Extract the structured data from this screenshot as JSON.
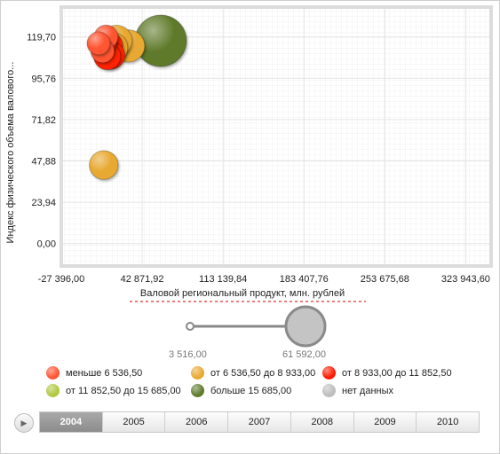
{
  "chart_data": {
    "type": "scatter",
    "xlabel": "Валовой региональный продукт, млн. рублей",
    "ylabel": "Индекс физического объема валового...",
    "x_ticks": [
      "-27 396,00",
      "42 871,92",
      "113 139,84",
      "183 407,76",
      "253 675,68",
      "323 943,60"
    ],
    "y_ticks": [
      "119,70",
      "95,76",
      "71,82",
      "47,88",
      "23,94",
      "0,00"
    ],
    "xlim": [
      -27396,
      346000
    ],
    "ylim": [
      -13,
      137
    ],
    "bubbles": [
      {
        "x": 5000,
        "y": 116.0,
        "size": 7000,
        "color": "#ff5533"
      },
      {
        "x": 8500,
        "y": 111.5,
        "size": 7200,
        "color": "#ff5533"
      },
      {
        "x": 11500,
        "y": 119.7,
        "size": 7500,
        "color": "#ff5533"
      },
      {
        "x": 14000,
        "y": 114.5,
        "size": 10200,
        "color": "#ff2200"
      },
      {
        "x": 12500,
        "y": 108.5,
        "size": 9600,
        "color": "#ff2200"
      },
      {
        "x": 17000,
        "y": 113.5,
        "size": 12300,
        "color": "#e8a930"
      },
      {
        "x": 20500,
        "y": 117.5,
        "size": 12800,
        "color": "#e8a930"
      },
      {
        "x": 31000,
        "y": 114.5,
        "size": 13800,
        "color": "#e8a930"
      },
      {
        "x": 16000,
        "y": 109.0,
        "size": 9900,
        "color": "#ff2200"
      },
      {
        "x": 10000,
        "y": 116.5,
        "size": 8200,
        "color": "#ff2200"
      },
      {
        "x": 9500,
        "y": 45.5,
        "size": 11000,
        "color": "#e8a930"
      },
      {
        "x": 59000,
        "y": 117.5,
        "size": 35000,
        "color": "#5e7a2a"
      }
    ],
    "size_legend": {
      "min": "3 516,00",
      "max": "61 592,00"
    },
    "legend_position": "bottom",
    "legend": [
      {
        "label": "меньше 6 536,50",
        "color": "#ff5533"
      },
      {
        "label": "от 6 536,50 до 8 933,00",
        "color": "#e8a930"
      },
      {
        "label": "от 8 933,00 до 11 852,50",
        "color": "#ff1a00"
      },
      {
        "label": "от 11 852,50 до 15 685,00",
        "color": "#b0c840"
      },
      {
        "label": "больше 15 685,00",
        "color": "#5e7a2a"
      },
      {
        "label": "нет данных",
        "color": "#bdbdbd"
      }
    ]
  },
  "timeline": {
    "play_icon": "play-icon",
    "years": [
      "2004",
      "2005",
      "2006",
      "2007",
      "2008",
      "2009",
      "2010"
    ],
    "active_year": "2004"
  }
}
